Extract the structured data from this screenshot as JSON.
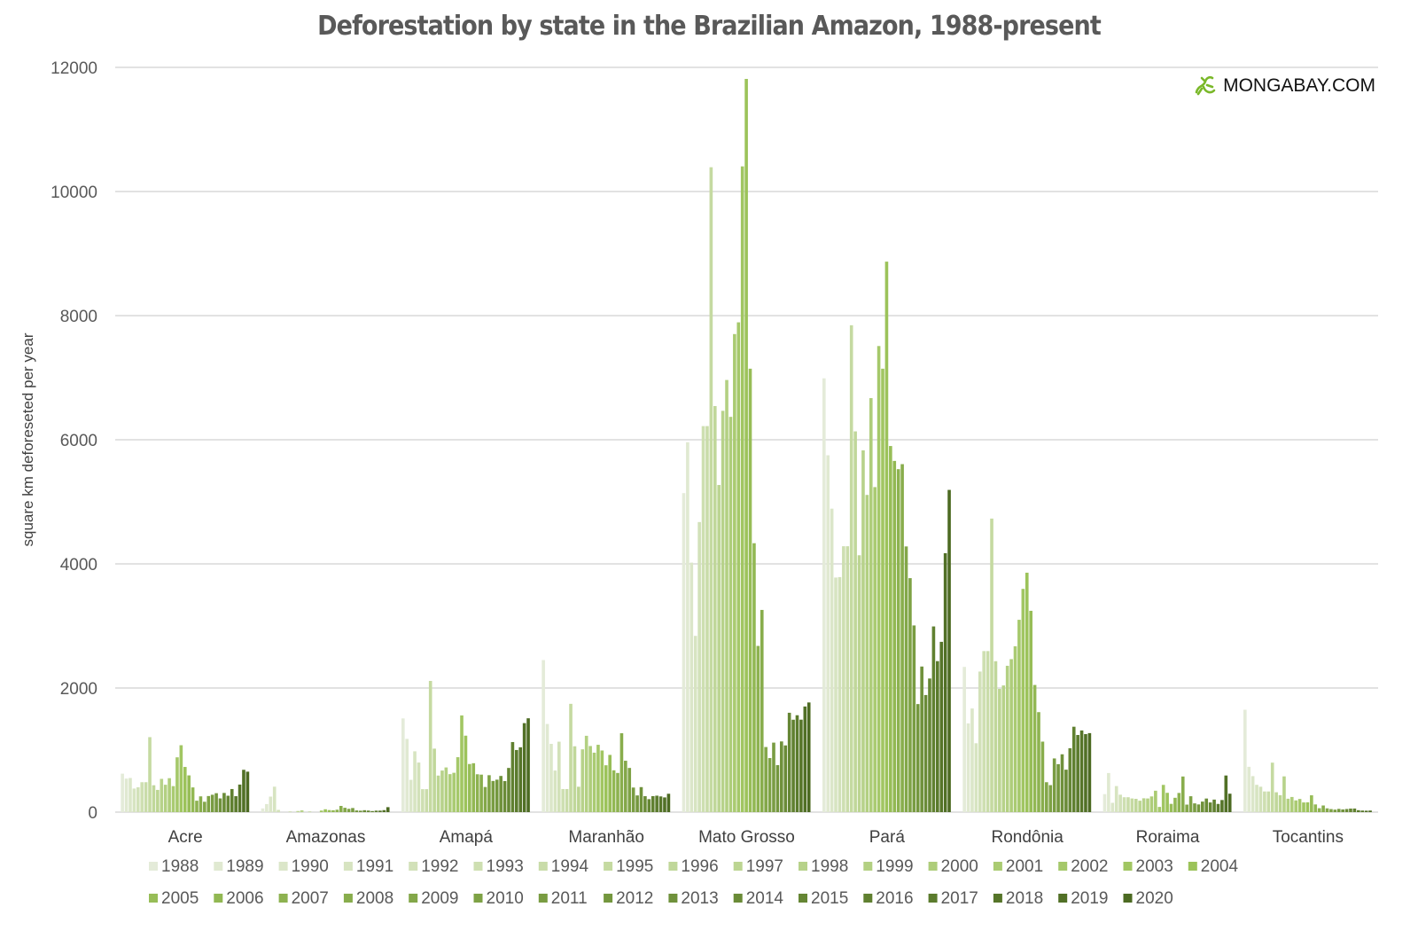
{
  "chart_data": {
    "type": "bar",
    "title": "Deforestation by state in the Brazilian Amazon, 1988-present",
    "xlabel": "",
    "ylabel": "square km deforeseted per year",
    "ylim": [
      0,
      12000
    ],
    "yticks": [
      0,
      2000,
      4000,
      6000,
      8000,
      10000,
      12000
    ],
    "grid": true,
    "legend_position": "bottom",
    "categories": [
      "Acre",
      "Amazonas",
      "Amapá",
      "Maranhão",
      "Mato Grosso",
      "Pará",
      "Rondônia",
      "Roraima",
      "Tocantins"
    ],
    "series_names": [
      "1988",
      "1989",
      "1990",
      "1991",
      "1992",
      "1993",
      "1994",
      "1995",
      "1996",
      "1997",
      "1998",
      "1999",
      "2000",
      "2001",
      "2002",
      "2003",
      "2004",
      "2005",
      "2006",
      "2007",
      "2008",
      "2009",
      "2010",
      "2011",
      "2012",
      "2013",
      "2014",
      "2015",
      "2016",
      "2017",
      "2018",
      "2019",
      "2020"
    ],
    "values_by_state": {
      "Acre": [
        620,
        540,
        550,
        380,
        400,
        482,
        482,
        1208,
        433,
        358,
        536,
        441,
        547,
        419,
        883,
        1078,
        728,
        592,
        398,
        184,
        254,
        167,
        259,
        280,
        305,
        221,
        309,
        264,
        372,
        257,
        444,
        682,
        652
      ],
      "Amazonas": [
        60,
        130,
        250,
        410,
        36,
        0,
        0,
        9,
        0,
        18,
        30,
        0,
        7,
        0,
        0,
        25,
        46,
        33,
        30,
        39,
        100,
        70,
        53,
        66,
        27,
        23,
        31,
        25,
        17,
        24,
        24,
        32,
        80
      ],
      "Amapá": [
        1510,
        1180,
        520,
        980,
        799,
        370,
        370,
        2114,
        1023,
        589,
        670,
        720,
        612,
        634,
        885,
        1558,
        1232,
        775,
        788,
        610,
        604,
        405,
        595,
        502,
        523,
        583,
        500,
        712,
        1129,
        1001,
        1045,
        1434,
        1512
      ],
      "Maranhão": [
        2450,
        1420,
        1100,
        670,
        1135,
        372,
        372,
        1745,
        1061,
        409,
        1012,
        1230,
        1065,
        958,
        1085,
        993,
        755,
        922,
        674,
        631,
        1271,
        828,
        712,
        396,
        269,
        403,
        257,
        209,
        258,
        265,
        253,
        237,
        296
      ],
      "Mato Grosso": [
        5140,
        5960,
        4020,
        2840,
        4674,
        6220,
        6220,
        10391,
        6543,
        5271,
        6466,
        6963,
        6369,
        7703,
        7892,
        10405,
        11814,
        7145,
        4333,
        2678,
        3258,
        1049,
        871,
        1120,
        757,
        1139,
        1075,
        1601,
        1489,
        1561,
        1490,
        1702,
        1767
      ],
      "Pará": [
        6990,
        5750,
        4890,
        3780,
        3787,
        4284,
        4284,
        7845,
        6135,
        4139,
        5829,
        5111,
        6671,
        5237,
        7510,
        7145,
        8870,
        5899,
        5659,
        5526,
        5607,
        4281,
        3770,
        3008,
        1741,
        2346,
        1887,
        2153,
        2992,
        2433,
        2744,
        4172,
        5192
      ],
      "Rondônia": [
        2340,
        1430,
        1670,
        1110,
        2265,
        2595,
        2595,
        4730,
        2432,
        1986,
        2041,
        2358,
        2465,
        2673,
        3099,
        3597,
        3858,
        3244,
        2049,
        1611,
        1136,
        482,
        435,
        865,
        773,
        932,
        684,
        1030,
        1376,
        1243,
        1316,
        1257,
        1273
      ],
      "Roraima": [
        290,
        630,
        150,
        420,
        281,
        240,
        240,
        220,
        214,
        184,
        223,
        220,
        253,
        345,
        84,
        439,
        311,
        133,
        231,
        309,
        574,
        121,
        256,
        141,
        124,
        170,
        219,
        156,
        202,
        132,
        195,
        590,
        297
      ],
      "Tocantins": [
        1650,
        730,
        580,
        440,
        409,
        333,
        333,
        797,
        320,
        273,
        576,
        216,
        244,
        189,
        212,
        156,
        158,
        271,
        124,
        63,
        107,
        61,
        49,
        40,
        52,
        43,
        50,
        57,
        58,
        31,
        25,
        23,
        25
      ]
    },
    "colors": {
      "first": "#e4ebd9",
      "middle": "#9cc35a",
      "last": "#4c6a22"
    }
  },
  "logo": {
    "text": "MONGABAY.COM",
    "icon": "gecko-icon",
    "color": "#7ab829"
  }
}
